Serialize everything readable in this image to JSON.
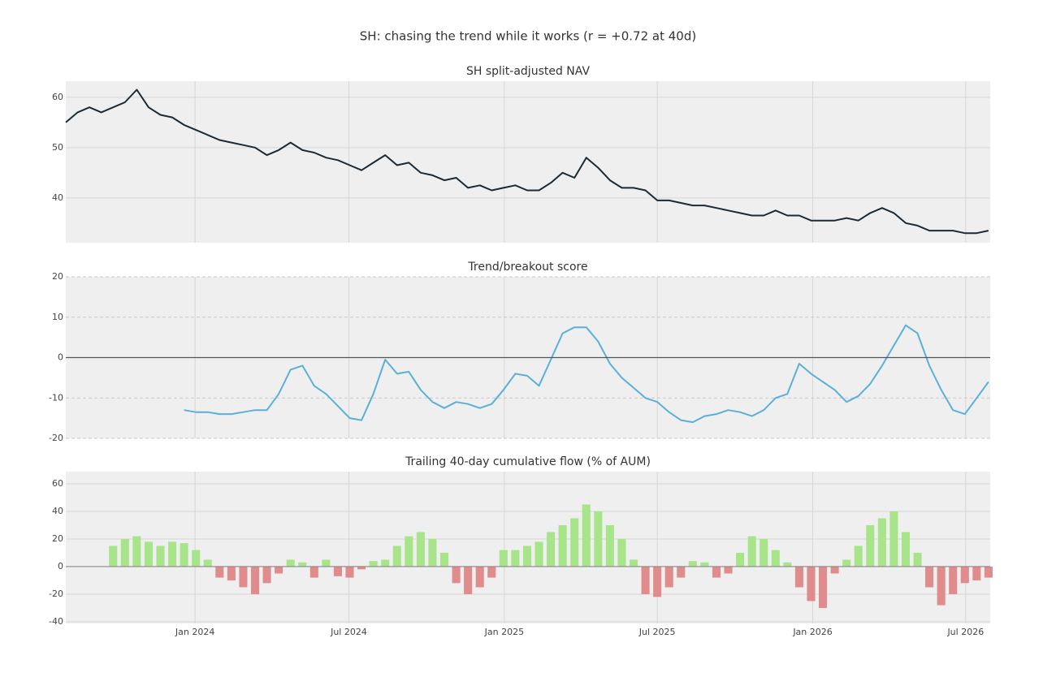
{
  "chart_data": {
    "title": "SH: chasing the trend while it works (r = +0.72 at 40d)",
    "x": [
      "2023-08-01",
      "2023-08-15",
      "2023-08-29",
      "2023-09-12",
      "2023-09-26",
      "2023-10-10",
      "2023-10-24",
      "2023-11-07",
      "2023-11-21",
      "2023-12-05",
      "2023-12-19",
      "2024-01-02",
      "2024-01-16",
      "2024-01-30",
      "2024-02-13",
      "2024-02-27",
      "2024-03-12",
      "2024-03-26",
      "2024-04-09",
      "2024-04-23",
      "2024-05-07",
      "2024-05-21",
      "2024-06-04",
      "2024-06-18",
      "2024-07-02",
      "2024-07-16",
      "2024-07-30",
      "2024-08-13",
      "2024-08-27",
      "2024-09-10",
      "2024-09-24",
      "2024-10-08",
      "2024-10-22",
      "2024-11-05",
      "2024-11-19",
      "2024-12-03",
      "2024-12-17",
      "2024-12-31",
      "2025-01-14",
      "2025-01-28",
      "2025-02-11",
      "2025-02-25",
      "2025-03-11",
      "2025-03-25",
      "2025-04-08",
      "2025-04-22",
      "2025-05-06",
      "2025-05-20",
      "2025-06-03",
      "2025-06-17",
      "2025-07-01",
      "2025-07-15",
      "2025-07-29",
      "2025-08-12",
      "2025-08-26",
      "2025-09-09",
      "2025-09-23",
      "2025-10-07",
      "2025-10-21",
      "2025-11-04",
      "2025-11-18",
      "2025-12-02",
      "2025-12-16",
      "2025-12-30",
      "2026-01-13",
      "2026-01-27",
      "2026-02-10",
      "2026-02-24",
      "2026-03-10",
      "2026-03-24",
      "2026-04-07",
      "2026-04-21",
      "2026-05-05",
      "2026-05-19",
      "2026-06-02",
      "2026-06-16",
      "2026-06-30",
      "2026-07-14",
      "2026-07-28"
    ],
    "xlim": [
      "2023-08-01",
      "2026-07-30"
    ],
    "xticks": [
      {
        "value": "2024-01-01",
        "label": "Jan 2024"
      },
      {
        "value": "2024-07-01",
        "label": "Jul 2024"
      },
      {
        "value": "2025-01-01",
        "label": "Jan 2025"
      },
      {
        "value": "2025-07-01",
        "label": "Jul 2025"
      },
      {
        "value": "2026-01-01",
        "label": "Jan 2026"
      },
      {
        "value": "2026-07-01",
        "label": "Jul 2026"
      }
    ],
    "grid": true,
    "panels": [
      {
        "type": "line",
        "title": "SH split-adjusted NAV",
        "ylim": [
          31.1,
          63.2
        ],
        "yticks": [
          40,
          50,
          60
        ],
        "series": [
          {
            "color": "#1c2a33",
            "values": [
              55,
              57,
              58,
              57,
              58,
              59,
              61.5,
              58,
              56.5,
              56,
              54.5,
              53.5,
              52.5,
              51.5,
              51,
              50.5,
              50,
              48.5,
              49.5,
              51,
              49.5,
              49,
              48,
              47.5,
              46.5,
              45.5,
              47,
              48.5,
              46.5,
              47,
              45,
              44.5,
              43.5,
              44,
              42,
              42.5,
              41.5,
              42,
              42.5,
              41.5,
              41.5,
              43,
              45,
              44,
              48,
              46,
              43.5,
              42,
              42,
              41.5,
              39.5,
              39.5,
              39,
              38.5,
              38.5,
              38,
              37.5,
              37,
              36.5,
              36.5,
              37.5,
              36.5,
              36.5,
              35.5,
              35.5,
              35.5,
              36,
              35.5,
              37,
              38,
              37,
              35,
              34.5,
              33.5,
              33.5,
              33.5,
              33,
              33,
              33.5
            ]
          }
        ]
      },
      {
        "type": "line",
        "title": "Trend/breakout score",
        "ylim": [
          -20,
          20
        ],
        "yticks": [
          -20,
          -10,
          0,
          10,
          20
        ],
        "zero_line": true,
        "series": [
          {
            "color": "#5bb0d8",
            "values": [
              null,
              null,
              null,
              null,
              null,
              null,
              null,
              null,
              null,
              null,
              -13,
              -13.5,
              -13.5,
              -14,
              -14,
              -13.5,
              -13,
              -13,
              -9,
              -3,
              -2,
              -7,
              -9,
              -12,
              -15,
              -15.5,
              -9,
              -0.5,
              -4,
              -3.5,
              -8,
              -11,
              -12.5,
              -11,
              -11.5,
              -12.5,
              -11.5,
              -8,
              -4,
              -4.5,
              -7,
              -0.5,
              6,
              7.5,
              7.5,
              4,
              -1.5,
              -5,
              -7.5,
              -10,
              -11,
              -13.5,
              -15.5,
              -16,
              -14.5,
              -14,
              -13,
              -13.5,
              -14.5,
              -13,
              -10,
              -9,
              -1.5,
              -4,
              -6,
              -8,
              -11,
              -9.5,
              -6.5,
              -2,
              3,
              8,
              6,
              -2,
              -8,
              -13,
              -14,
              -10,
              -6
            ]
          }
        ]
      },
      {
        "type": "bar",
        "title": "Trailing 40-day cumulative flow (% of AUM)",
        "ylim": [
          -41.2,
          68.8
        ],
        "yticks": [
          -40,
          -20,
          0,
          20,
          40,
          60
        ],
        "zero_line": true,
        "positive_color": "#a8e58a",
        "negative_color": "#e08c8c",
        "series": [
          {
            "values": [
              null,
              null,
              null,
              null,
              15,
              20,
              22,
              18,
              15,
              18,
              17,
              12,
              5,
              -8,
              -10,
              -15,
              -20,
              -12,
              -5,
              5,
              3,
              -8,
              5,
              -7,
              -8,
              -2,
              4,
              5,
              15,
              22,
              25,
              20,
              10,
              -12,
              -20,
              -15,
              -8,
              12,
              12,
              15,
              18,
              25,
              30,
              35,
              45,
              40,
              30,
              20,
              5,
              -20,
              -22,
              -15,
              -8,
              4,
              3,
              -8,
              -5,
              10,
              22,
              20,
              12,
              3,
              -15,
              -25,
              -30,
              -5,
              5,
              15,
              30,
              35,
              40,
              25,
              10,
              -15,
              -28,
              -20,
              -12,
              -10,
              -8
            ]
          }
        ]
      }
    ]
  }
}
